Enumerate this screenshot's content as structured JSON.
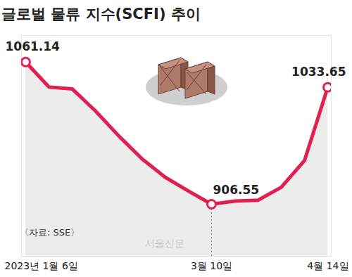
{
  "chart_data": {
    "type": "line",
    "title": "글로벌 물류 지수(SCFI) 추이",
    "source": "〈자료: SSE〉",
    "credit": "서울신문",
    "categories": [
      "2023년 1월 6일",
      null,
      null,
      null,
      null,
      null,
      null,
      null,
      "3월 10일",
      null,
      null,
      null,
      null,
      "4월 14일"
    ],
    "values": [
      1061.14,
      1034,
      1032,
      1008,
      981,
      956,
      936,
      921,
      906.55,
      910,
      911,
      925,
      954,
      1033.65
    ],
    "value_labels": [
      "1061.14",
      null,
      null,
      null,
      null,
      null,
      null,
      null,
      "906.55",
      null,
      null,
      null,
      null,
      "1033.65"
    ],
    "color": "#e0204f",
    "marker": "circle",
    "ylim": [
      850,
      1090
    ],
    "tick_labels": "x",
    "grid": false
  }
}
